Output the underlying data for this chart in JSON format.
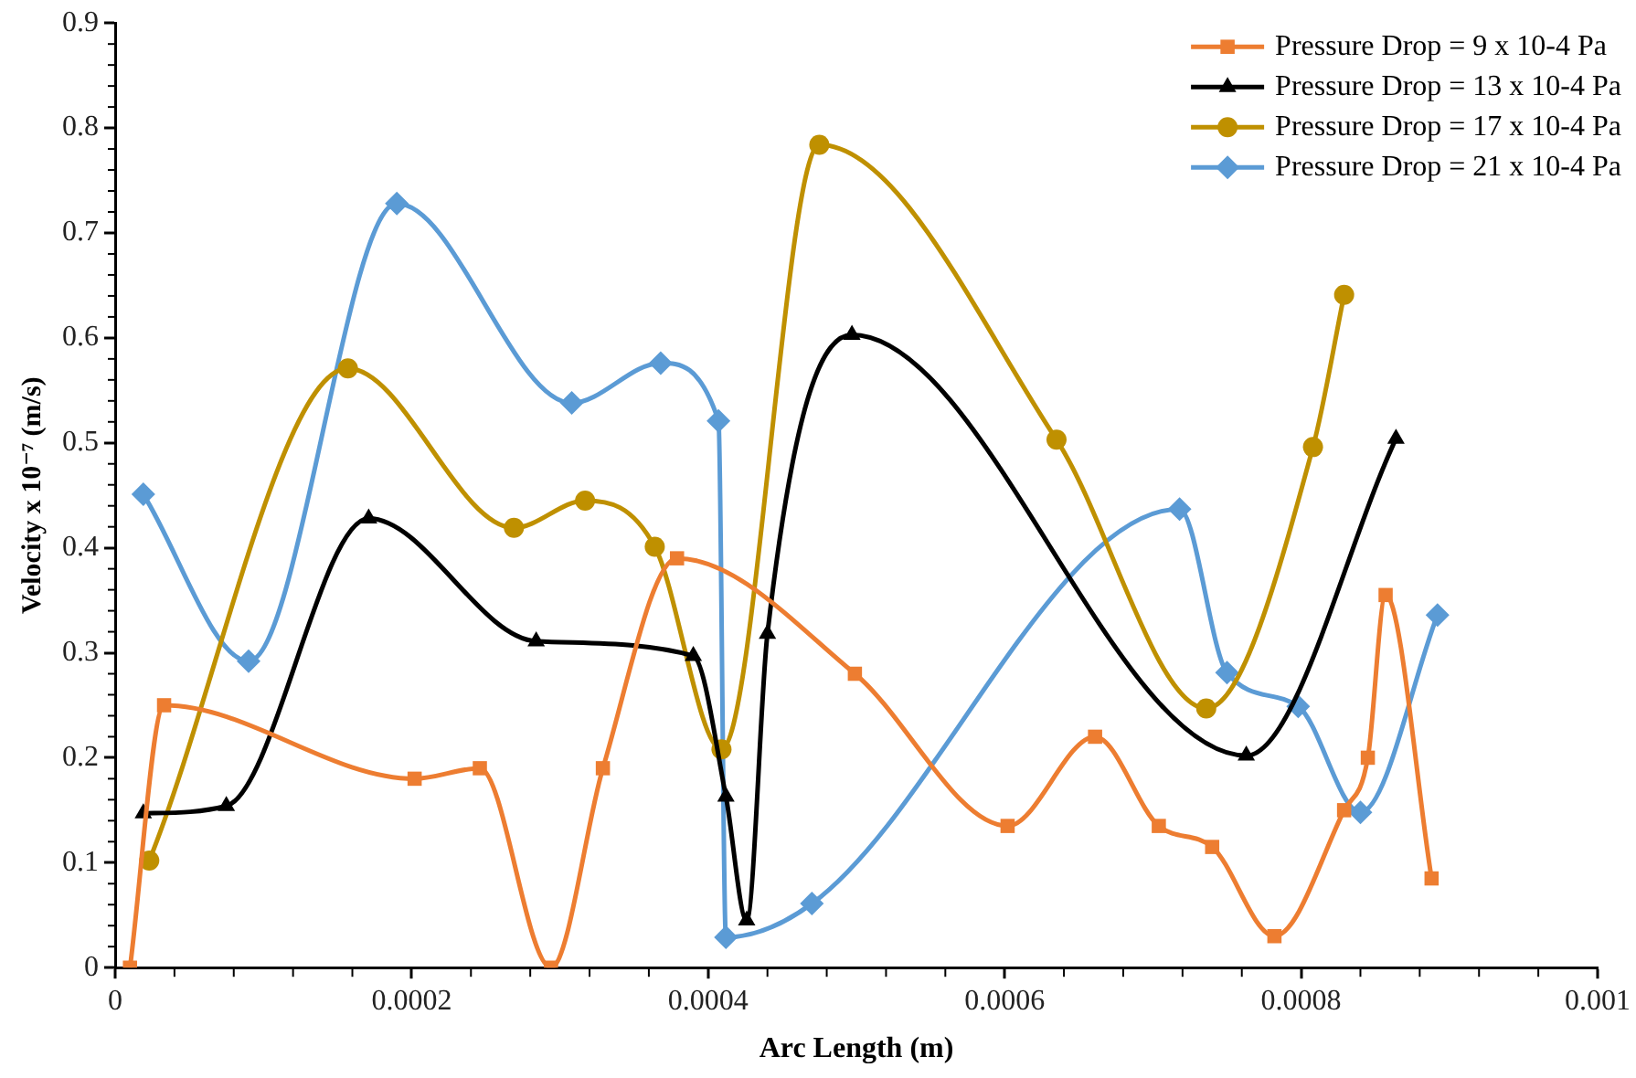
{
  "chart_data": {
    "type": "line",
    "xlabel": "Arc Length (m)",
    "ylabel": "Velocity x 10⁻⁷ (m/s)",
    "xlim": [
      0,
      0.001
    ],
    "xticks": [
      0,
      0.0002,
      0.0004,
      0.0006,
      0.0008,
      0.001
    ],
    "ylim": [
      0,
      0.9
    ],
    "yticks": [
      0,
      0.1,
      0.2,
      0.3,
      0.4,
      0.5,
      0.6,
      0.7,
      0.8,
      0.9
    ],
    "grid": false,
    "legend": "top right",
    "line_style": "solid",
    "series": [
      {
        "name": "Pressure Drop = 9 x 10-4 Pa",
        "color": "#ed7d31",
        "marker": "square",
        "x": [
          1e-05,
          3.3e-05,
          0.000202,
          0.000246,
          0.000294,
          0.000329,
          0.000379,
          0.000499,
          0.000602,
          0.000661,
          0.000704,
          0.00074,
          0.000782,
          0.000829,
          0.000845,
          0.000857,
          0.000888
        ],
        "values": [
          0,
          0.25,
          0.18,
          0.19,
          0,
          0.19,
          0.39,
          0.28,
          0.135,
          0.22,
          0.135,
          0.115,
          0.03,
          0.15,
          0.2,
          0.355,
          0.085
        ]
      },
      {
        "name": "Pressure Drop = 13 x 10-4 Pa",
        "color": "#000000",
        "marker": "triangle",
        "x": [
          1.9e-05,
          7.5e-05,
          0.000171,
          0.000284,
          0.00039,
          0.000412,
          0.000426,
          0.00044,
          0.000497,
          0.000763,
          0.000864
        ],
        "values": [
          0.147,
          0.154,
          0.428,
          0.311,
          0.297,
          0.163,
          0.045,
          0.318,
          0.603,
          0.202,
          0.504
        ]
      },
      {
        "name": "Pressure Drop = 17 x 10-4 Pa",
        "color": "#bf9000",
        "marker": "circle",
        "x": [
          2.3e-05,
          0.000157,
          0.000269,
          0.000317,
          0.000364,
          0.000409,
          0.000475,
          0.000635,
          0.000736,
          0.000808,
          0.000829
        ],
        "values": [
          0.102,
          0.571,
          0.419,
          0.445,
          0.401,
          0.208,
          0.784,
          0.503,
          0.247,
          0.496,
          0.641
        ]
      },
      {
        "name": "Pressure Drop = 21 x 10-4 Pa",
        "color": "#5b9bd5",
        "marker": "diamond",
        "x": [
          1.9e-05,
          9e-05,
          0.00019,
          0.000308,
          0.000368,
          0.000407,
          0.000412,
          0.00047,
          0.000718,
          0.00075,
          0.000798,
          0.00084,
          0.000892
        ],
        "values": [
          0.451,
          0.292,
          0.728,
          0.538,
          0.576,
          0.521,
          0.029,
          0.061,
          0.437,
          0.281,
          0.249,
          0.148,
          0.336
        ]
      }
    ]
  }
}
